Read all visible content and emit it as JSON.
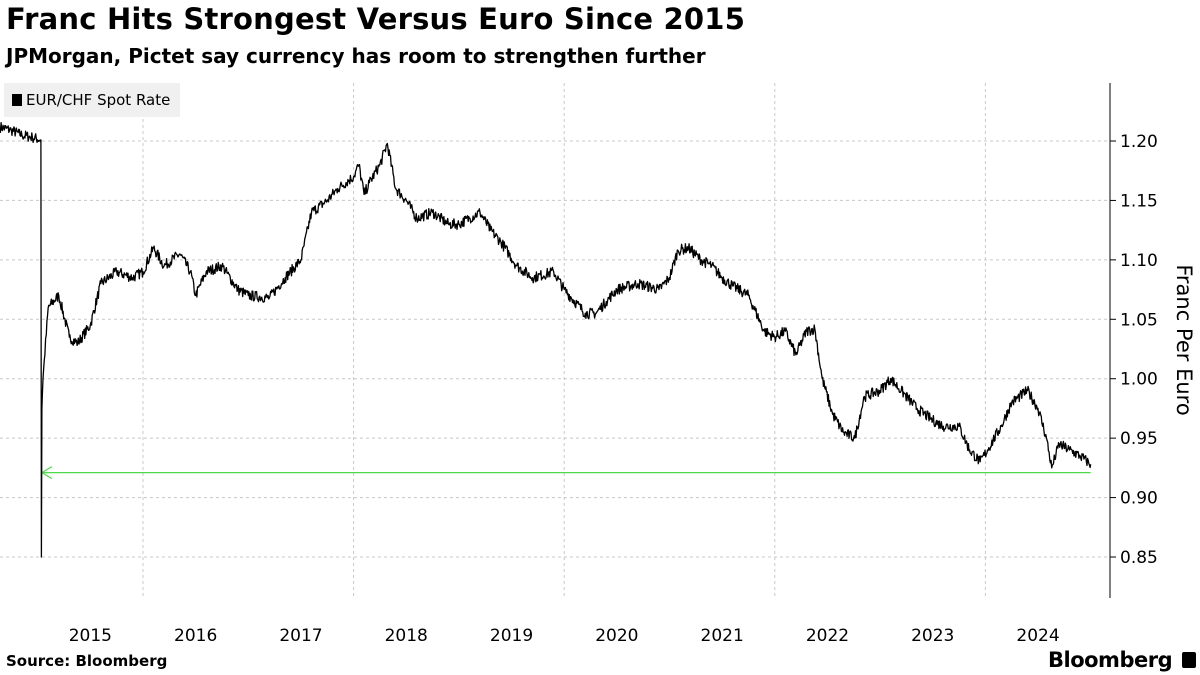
{
  "title": "Franc Hits Strongest Versus Euro Since 2015",
  "subtitle": "JPMorgan, Pictet say currency has room to strengthen further",
  "source": "Source: Bloomberg",
  "logo": "Bloomberg",
  "colors": {
    "line": "#000000",
    "annotation": "#4cd94c",
    "grid": "#c8c8c8"
  },
  "chart_data": {
    "type": "line",
    "title": "Franc Hits Strongest Versus Euro Since 2015",
    "ylabel": "Franc Per Euro",
    "xlabel": "",
    "legend": [
      "EUR/CHF Spot Rate"
    ],
    "legend_position": "top-left",
    "xlim": [
      2014.64,
      2025.2
    ],
    "ylim": [
      0.82,
      1.245
    ],
    "xticks": [
      "2015",
      "2016",
      "2017",
      "2018",
      "2019",
      "2020",
      "2021",
      "2022",
      "2023",
      "2024"
    ],
    "yticks": [
      "1.20",
      "1.15",
      "1.10",
      "1.05",
      "1.00",
      "0.95",
      "0.90",
      "0.85"
    ],
    "annotation": {
      "type": "arrow",
      "value": 0.921,
      "from": 2025.0,
      "to": 2015.04
    },
    "series": [
      {
        "name": "EUR/CHF Spot Rate",
        "x": [
          2014.64,
          2014.75,
          2014.85,
          2014.95,
          2015.03,
          2015.035,
          2015.04,
          2015.05,
          2015.1,
          2015.2,
          2015.3,
          2015.38,
          2015.5,
          2015.6,
          2015.75,
          2015.9,
          2016.0,
          2016.1,
          2016.2,
          2016.35,
          2016.45,
          2016.5,
          2016.6,
          2016.75,
          2016.9,
          2017.0,
          2017.2,
          2017.35,
          2017.5,
          2017.6,
          2017.75,
          2017.85,
          2018.0,
          2018.05,
          2018.1,
          2018.15,
          2018.25,
          2018.32,
          2018.4,
          2018.5,
          2018.6,
          2018.75,
          2018.9,
          2019.0,
          2019.1,
          2019.2,
          2019.3,
          2019.4,
          2019.55,
          2019.7,
          2019.9,
          2020.0,
          2020.2,
          2020.3,
          2020.4,
          2020.5,
          2020.7,
          2020.9,
          2021.0,
          2021.08,
          2021.18,
          2021.3,
          2021.4,
          2021.5,
          2021.6,
          2021.75,
          2021.9,
          2022.0,
          2022.1,
          2022.2,
          2022.3,
          2022.38,
          2022.45,
          2022.55,
          2022.65,
          2022.76,
          2022.85,
          2023.0,
          2023.1,
          2023.2,
          2023.35,
          2023.5,
          2023.6,
          2023.75,
          2023.85,
          2023.95,
          2024.02,
          2024.15,
          2024.25,
          2024.4,
          2024.5,
          2024.58,
          2024.63,
          2024.7,
          2024.8,
          2024.9,
          2025.0
        ],
        "y": [
          1.212,
          1.209,
          1.205,
          1.203,
          1.201,
          0.85,
          0.975,
          1.0,
          1.06,
          1.07,
          1.035,
          1.03,
          1.045,
          1.08,
          1.09,
          1.085,
          1.09,
          1.11,
          1.095,
          1.105,
          1.09,
          1.07,
          1.09,
          1.095,
          1.075,
          1.07,
          1.068,
          1.085,
          1.1,
          1.14,
          1.15,
          1.16,
          1.17,
          1.18,
          1.155,
          1.165,
          1.18,
          1.198,
          1.16,
          1.15,
          1.135,
          1.14,
          1.13,
          1.13,
          1.135,
          1.14,
          1.125,
          1.115,
          1.095,
          1.085,
          1.09,
          1.075,
          1.055,
          1.055,
          1.065,
          1.075,
          1.08,
          1.075,
          1.085,
          1.108,
          1.11,
          1.1,
          1.095,
          1.085,
          1.078,
          1.07,
          1.04,
          1.035,
          1.04,
          1.02,
          1.04,
          1.042,
          1.0,
          0.97,
          0.955,
          0.95,
          0.985,
          0.99,
          1.0,
          0.99,
          0.975,
          0.965,
          0.96,
          0.96,
          0.94,
          0.93,
          0.94,
          0.96,
          0.98,
          0.99,
          0.975,
          0.95,
          0.925,
          0.945,
          0.94,
          0.935,
          0.928
        ]
      }
    ]
  }
}
